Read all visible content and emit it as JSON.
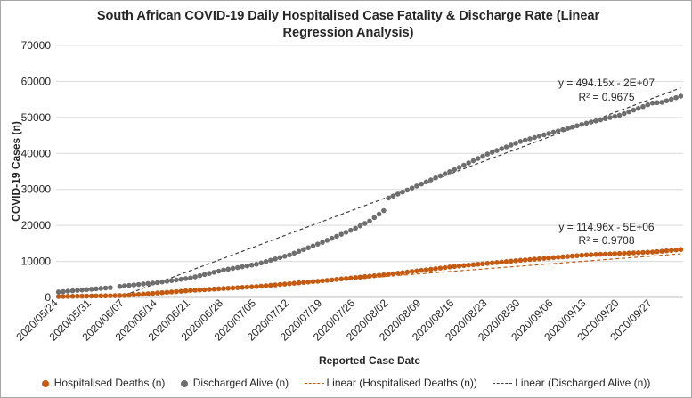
{
  "colors": {
    "deaths": "#c55a11",
    "discharged": "#6e6e6e",
    "deaths_trend": "#c55a11",
    "discharged_trend": "#404040",
    "grid": "#d9d9d9",
    "axis": "#bfbfbf",
    "text": "#262626"
  },
  "chart_data": {
    "type": "scatter",
    "title": "South African COVID-19 Daily Hospitalised Case Fatality & Discharge Rate (Linear Regression Analysis)",
    "xlabel": "Reported Case Date",
    "ylabel": "COVID-19 Cases (n)",
    "ylim": [
      0,
      70000
    ],
    "yticks": [
      "0",
      "10000",
      "20000",
      "30000",
      "40000",
      "50000",
      "60000",
      "70000"
    ],
    "x_start": "2020/05/24",
    "x_end": "2020/10/03",
    "xtick_labels": [
      "2020/05/24",
      "2020/05/31",
      "2020/06/07",
      "2020/06/14",
      "2020/06/21",
      "2020/06/28",
      "2020/07/05",
      "2020/07/12",
      "2020/07/19",
      "2020/07/26",
      "2020/08/02",
      "2020/08/09",
      "2020/08/16",
      "2020/08/23",
      "2020/08/30",
      "2020/09/06",
      "2020/09/13",
      "2020/09/20",
      "2020/09/27"
    ],
    "grid": true,
    "legend_position": "bottom",
    "series": [
      {
        "name": "Hospitalised Deaths (n)",
        "color_key": "deaths",
        "anchors": [
          [
            0,
            250
          ],
          [
            14,
            520
          ],
          [
            28,
            1900
          ],
          [
            42,
            3000
          ],
          [
            56,
            4600
          ],
          [
            70,
            6400
          ],
          [
            84,
            8600
          ],
          [
            98,
            10300
          ],
          [
            112,
            11800
          ],
          [
            126,
            12600
          ],
          [
            132,
            13300
          ]
        ]
      },
      {
        "name": "Discharged Alive (n)",
        "color_key": "discharged",
        "anchors": [
          [
            0,
            1500
          ],
          [
            11,
            2700
          ],
          [
            14,
            3200
          ],
          [
            21,
            4100
          ],
          [
            28,
            5400
          ],
          [
            35,
            7600
          ],
          [
            42,
            9200
          ],
          [
            49,
            11800
          ],
          [
            56,
            15300
          ],
          [
            63,
            19200
          ],
          [
            66,
            21200
          ],
          [
            69,
            24100
          ],
          [
            70,
            27600
          ],
          [
            77,
            31500
          ],
          [
            84,
            35500
          ],
          [
            91,
            39800
          ],
          [
            98,
            43300
          ],
          [
            105,
            45900
          ],
          [
            112,
            48400
          ],
          [
            119,
            50600
          ],
          [
            124,
            53000
          ],
          [
            126,
            54000
          ],
          [
            128,
            54200
          ],
          [
            132,
            55900
          ]
        ],
        "gaps": [
          12
        ]
      }
    ],
    "trendlines": [
      {
        "name": "Linear (Hospitalised Deaths (n))",
        "color_key": "deaths_trend",
        "x_range": [
          14,
          132
        ],
        "y_range": [
          250,
          12100
        ],
        "equation": "y = 114.96x - 5E+06",
        "r2": "R² = 0.9708"
      },
      {
        "name": "Linear (Discharged Alive (n))",
        "color_key": "discharged_trend",
        "x_range": [
          14,
          132
        ],
        "y_range": [
          600,
          58200
        ],
        "equation": "y = 494.15x - 2E+07",
        "r2": "R² = 0.9675"
      }
    ]
  }
}
